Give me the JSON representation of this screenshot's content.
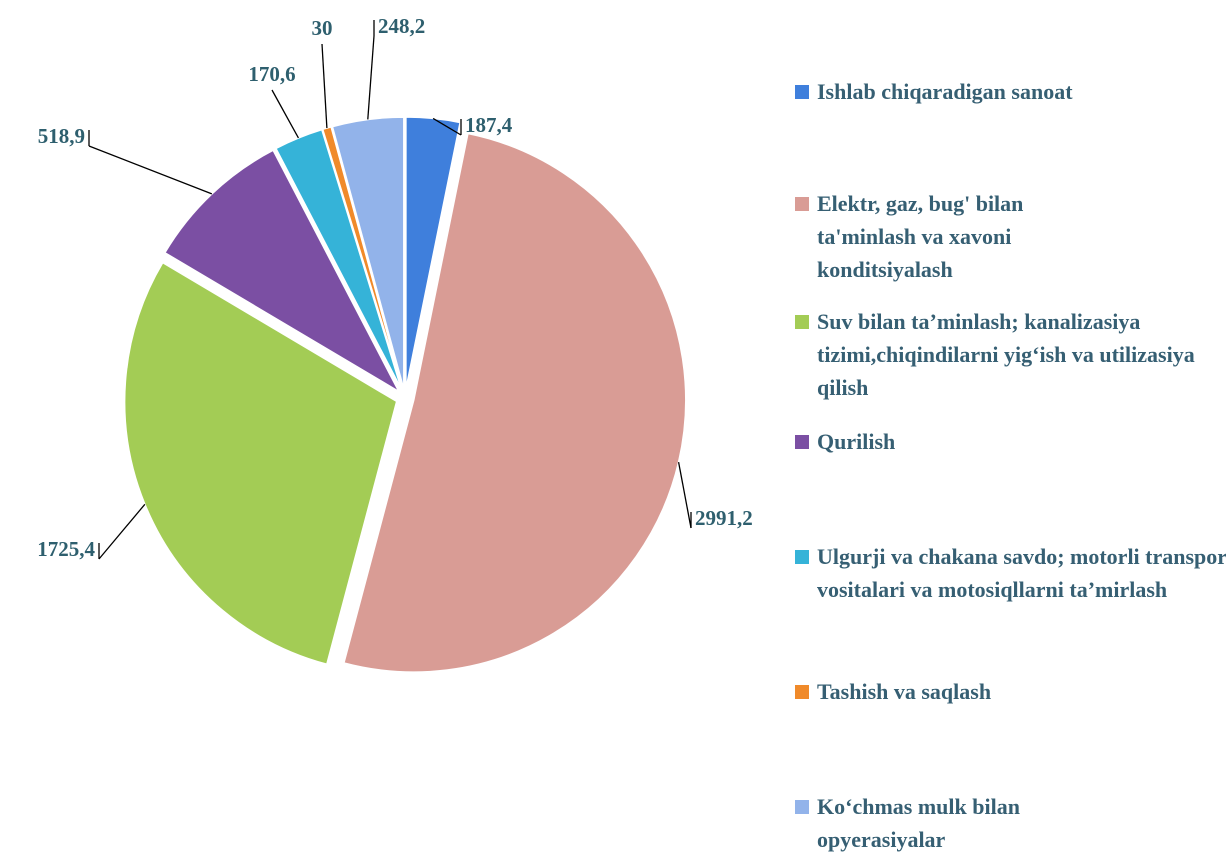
{
  "chart_data": {
    "type": "pie",
    "categories": [
      "Ishlab chiqaradigan sanoat",
      "Elektr, gaz, bug' bilan ta'minlash va xavoni konditsiyalash",
      "Suv bilan ta’minlash; kanalizasiya tizimi,chiqindilarni yig‘ish va utilizasiya qilish",
      "Qurilish",
      "Ulgurji va chakana savdo; motorli transport vositalari va motosiqllarni ta’mirlash",
      "Tashish va saqlash",
      "Ko‘chmas mulk bilan opyerasiyalar"
    ],
    "values": [
      187.4,
      2991.2,
      1725.4,
      518.9,
      170.6,
      30,
      248.2
    ],
    "value_labels": [
      "187,4",
      "2991,2",
      "1725,4",
      "518,9",
      "170,6",
      "30",
      "248,2"
    ],
    "colors": [
      "#3f7fdc",
      "#d99c95",
      "#a3cc55",
      "#7b4fa3",
      "#35b3d8",
      "#f08a2a",
      "#92b3ea"
    ]
  }
}
